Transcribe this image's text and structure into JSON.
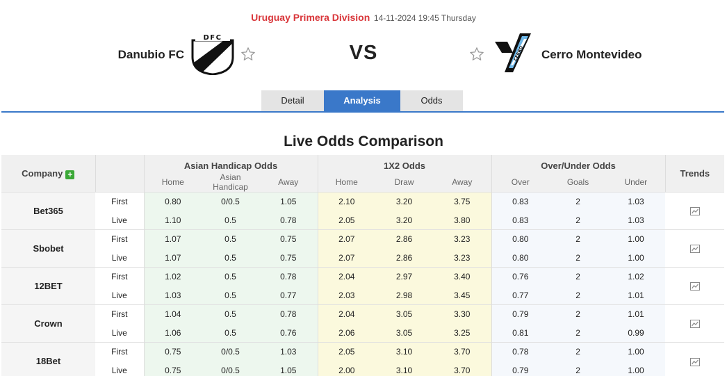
{
  "header": {
    "league": "Uruguay Primera Division",
    "datetime": "14-11-2024 19:45 Thursday",
    "home_team": "Danubio FC",
    "away_team": "Cerro Montevideo",
    "vs": "VS",
    "home_logo_text": "DFC",
    "away_logo_text": "CERRO"
  },
  "tabs": {
    "detail": "Detail",
    "analysis": "Analysis",
    "odds": "Odds",
    "active": "Analysis"
  },
  "section_title": "Live Odds Comparison",
  "table": {
    "company_header": "Company",
    "group_headers": {
      "asian_handicap": "Asian Handicap Odds",
      "x12": "1X2 Odds",
      "over_under": "Over/Under Odds",
      "trends": "Trends"
    },
    "sub_headers": {
      "ah": [
        "Home",
        "Asian Handicap",
        "Away"
      ],
      "x12": [
        "Home",
        "Draw",
        "Away"
      ],
      "ou": [
        "Over",
        "Goals",
        "Under"
      ]
    },
    "companies": [
      {
        "name": "Bet365",
        "rows": [
          {
            "type": "First",
            "ah": [
              "0.80",
              "0/0.5",
              "1.05"
            ],
            "x12": [
              "2.10",
              "3.20",
              "3.75"
            ],
            "ou": [
              "0.83",
              "2",
              "1.03"
            ]
          },
          {
            "type": "Live",
            "ah": [
              "1.10",
              "0.5",
              "0.78"
            ],
            "x12": [
              "2.05",
              "3.20",
              "3.80"
            ],
            "ou": [
              "0.83",
              "2",
              "1.03"
            ]
          }
        ]
      },
      {
        "name": "Sbobet",
        "rows": [
          {
            "type": "First",
            "ah": [
              "1.07",
              "0.5",
              "0.75"
            ],
            "x12": [
              "2.07",
              "2.86",
              "3.23"
            ],
            "ou": [
              "0.80",
              "2",
              "1.00"
            ]
          },
          {
            "type": "Live",
            "ah": [
              "1.07",
              "0.5",
              "0.75"
            ],
            "x12": [
              "2.07",
              "2.86",
              "3.23"
            ],
            "ou": [
              "0.80",
              "2",
              "1.00"
            ]
          }
        ]
      },
      {
        "name": "12BET",
        "rows": [
          {
            "type": "First",
            "ah": [
              "1.02",
              "0.5",
              "0.78"
            ],
            "x12": [
              "2.04",
              "2.97",
              "3.40"
            ],
            "ou": [
              "0.76",
              "2",
              "1.02"
            ]
          },
          {
            "type": "Live",
            "ah": [
              "1.03",
              "0.5",
              "0.77"
            ],
            "x12": [
              "2.03",
              "2.98",
              "3.45"
            ],
            "ou": [
              "0.77",
              "2",
              "1.01"
            ]
          }
        ]
      },
      {
        "name": "Crown",
        "rows": [
          {
            "type": "First",
            "ah": [
              "1.04",
              "0.5",
              "0.78"
            ],
            "x12": [
              "2.04",
              "3.05",
              "3.30"
            ],
            "ou": [
              "0.79",
              "2",
              "1.01"
            ]
          },
          {
            "type": "Live",
            "ah": [
              "1.06",
              "0.5",
              "0.76"
            ],
            "x12": [
              "2.06",
              "3.05",
              "3.25"
            ],
            "ou": [
              "0.81",
              "2",
              "0.99"
            ]
          }
        ]
      },
      {
        "name": "18Bet",
        "rows": [
          {
            "type": "First",
            "ah": [
              "0.75",
              "0/0.5",
              "1.03"
            ],
            "x12": [
              "2.05",
              "3.10",
              "3.70"
            ],
            "ou": [
              "0.78",
              "2",
              "1.00"
            ]
          },
          {
            "type": "Live",
            "ah": [
              "0.75",
              "0/0.5",
              "1.05"
            ],
            "x12": [
              "2.00",
              "3.10",
              "3.70"
            ],
            "ou": [
              "0.79",
              "2",
              "1.00"
            ]
          }
        ]
      }
    ]
  },
  "icons": {
    "favorite": "star-outline-icon",
    "add": "plus-icon",
    "trend": "line-chart-icon"
  },
  "colors": {
    "league": "#d9363a",
    "accent": "#3a78c9",
    "plus": "#3aa836",
    "ah_bg": "#edf7ee",
    "x12_bg": "#fbf9dd"
  }
}
